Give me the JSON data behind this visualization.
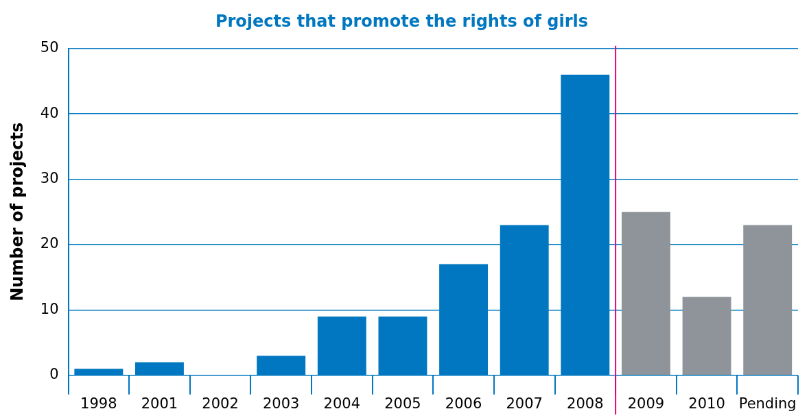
{
  "chart_data": {
    "type": "bar",
    "title": "Projects that promote the rights of girls",
    "ylabel": "Number of projects",
    "categories": [
      "1998",
      "2001",
      "2002",
      "2003",
      "2004",
      "2005",
      "2006",
      "2007",
      "2008",
      "2009",
      "2010",
      "Pending"
    ],
    "values": [
      1,
      2,
      0,
      3,
      9,
      9,
      17,
      23,
      46,
      25,
      12,
      23
    ],
    "colors": [
      "#0077c0",
      "#0077c0",
      "#0077c0",
      "#0077c0",
      "#0077c0",
      "#0077c0",
      "#0077c0",
      "#0077c0",
      "#0077c0",
      "#8e9499",
      "#8e9499",
      "#8e9499"
    ],
    "ylim": [
      0,
      50
    ],
    "yticks": [
      0,
      10,
      20,
      30,
      40,
      50
    ],
    "grid": "y",
    "legend": false,
    "ref_lines": [
      {
        "axis": "x",
        "value": "2009",
        "color": "#e2007a"
      }
    ]
  }
}
